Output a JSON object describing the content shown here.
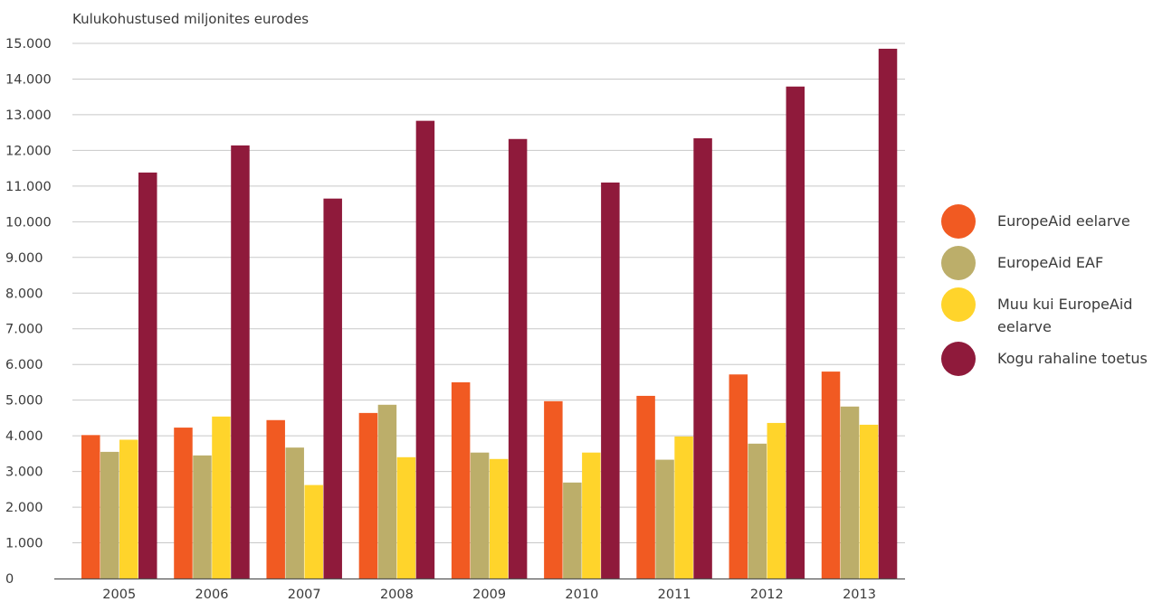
{
  "chart_data": {
    "type": "bar",
    "ylabel": "Kulukohustused miljonites eurodes",
    "categories": [
      "2005",
      "2006",
      "2007",
      "2008",
      "2009",
      "2010",
      "2011",
      "2012",
      "2013"
    ],
    "ylim": [
      0,
      15000
    ],
    "yticks": [
      "0",
      "1.000",
      "2.000",
      "3.000",
      "4.000",
      "5.000",
      "6.000",
      "7.000",
      "8.000",
      "9.000",
      "10.000",
      "11.000",
      "12.000",
      "13.000",
      "14.000",
      "15.000"
    ],
    "grid": true,
    "legend_position": "right",
    "series": [
      {
        "name": "EuropeAid eelarve",
        "color": "#f15a22",
        "values": [
          4020,
          4230,
          4440,
          4640,
          5500,
          4970,
          5120,
          5720,
          5800
        ]
      },
      {
        "name": "EuropeAid EAF",
        "color": "#bcae6a",
        "values": [
          3550,
          3450,
          3670,
          4870,
          3530,
          2690,
          3330,
          3780,
          4820
        ]
      },
      {
        "name": "Muu kui EuropeAid eelarve",
        "color": "#ffd42b",
        "values": [
          3890,
          4540,
          2620,
          3400,
          3350,
          3530,
          3980,
          4360,
          4310
        ]
      },
      {
        "name": "Kogu rahaline toetus",
        "color": "#8f1a3b",
        "values": [
          11380,
          12140,
          10650,
          12830,
          12320,
          11100,
          12340,
          13790,
          14850
        ]
      }
    ]
  },
  "legend": {
    "items": [
      {
        "label_line1": "EuropeAid eelarve",
        "label_line2": "",
        "color": "#f15a22"
      },
      {
        "label_line1": "EuropeAid EAF",
        "label_line2": "",
        "color": "#bcae6a"
      },
      {
        "label_line1": "Muu kui EuropeAid",
        "label_line2": "eelarve",
        "color": "#ffd42b"
      },
      {
        "label_line1": "Kogu rahaline toetus",
        "label_line2": "",
        "color": "#8f1a3b"
      }
    ]
  }
}
